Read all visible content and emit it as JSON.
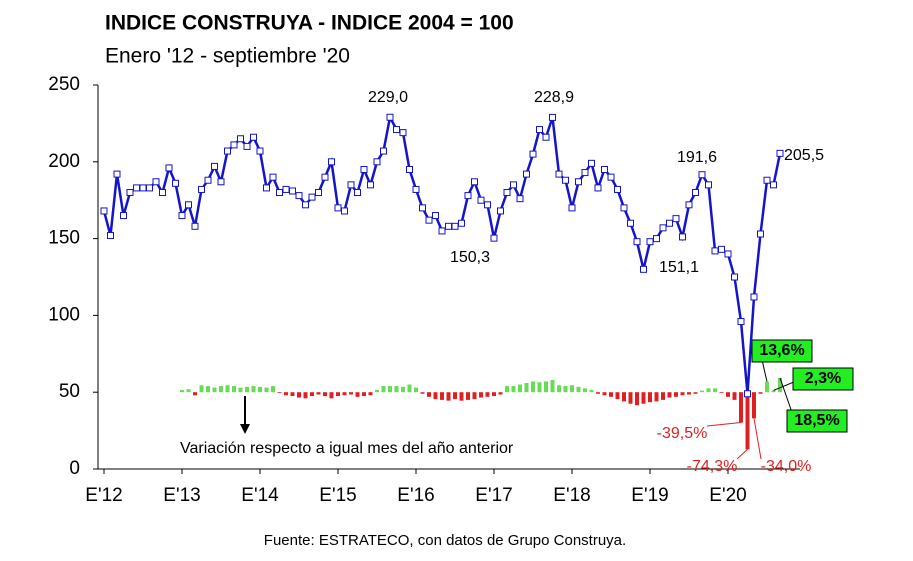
{
  "chart_data": {
    "type": "line",
    "title": "INDICE CONSTRUYA - INDICE 2004 = 100",
    "subtitle": "Enero '12 - septiembre '20",
    "source": "Fuente: ESTRATECO, con datos de Grupo Construya.",
    "annotation": "Variación respecto a igual mes del año anterior",
    "categories": [
      "E'12",
      null,
      null,
      null,
      null,
      null,
      null,
      null,
      null,
      null,
      null,
      null,
      "E'13",
      null,
      null,
      null,
      null,
      null,
      null,
      null,
      null,
      null,
      null,
      null,
      "E'14",
      null,
      null,
      null,
      null,
      null,
      null,
      null,
      null,
      null,
      null,
      null,
      "E'15",
      null,
      null,
      null,
      null,
      null,
      null,
      null,
      null,
      null,
      null,
      null,
      "E'16",
      null,
      null,
      null,
      null,
      null,
      null,
      null,
      null,
      null,
      null,
      null,
      "E'17",
      null,
      null,
      null,
      null,
      null,
      null,
      null,
      null,
      null,
      null,
      null,
      "E'18",
      null,
      null,
      null,
      null,
      null,
      null,
      null,
      null,
      null,
      null,
      null,
      "E'19",
      null,
      null,
      null,
      null,
      null,
      null,
      null,
      null,
      null,
      null,
      null,
      "E'20",
      null,
      null,
      null,
      null,
      null,
      null,
      null,
      null
    ],
    "series": [
      {
        "name": "Indice Construya",
        "type": "line",
        "color": "#1414c8",
        "values": [
          168,
          152,
          192,
          165,
          180,
          183,
          183,
          183,
          187,
          180,
          196,
          186,
          165,
          172,
          158,
          182,
          188,
          197,
          187,
          207,
          211,
          215,
          210,
          216,
          207,
          183,
          190,
          180,
          182,
          181,
          178,
          172,
          177,
          180,
          190,
          200,
          170,
          168,
          185,
          180,
          195,
          185,
          200,
          207,
          229.0,
          221,
          219,
          195,
          182,
          170,
          162,
          165,
          155,
          158,
          158,
          160,
          178,
          187,
          175,
          172,
          150.3,
          168,
          180,
          185,
          176,
          192,
          205,
          221,
          216,
          228.9,
          192,
          188,
          170,
          187,
          193,
          199,
          183,
          195,
          190,
          182,
          170,
          160,
          148,
          130,
          148,
          150,
          157,
          160,
          163,
          151.1,
          172,
          180,
          191.6,
          185,
          142,
          143,
          140,
          125,
          96,
          49,
          112,
          153,
          188,
          185,
          205.5
        ],
        "value_labels": [
          null,
          null,
          null,
          null,
          null,
          null,
          null,
          null,
          null,
          null,
          null,
          null,
          null,
          null,
          null,
          null,
          null,
          null,
          null,
          null,
          null,
          null,
          null,
          null,
          null,
          null,
          null,
          null,
          null,
          null,
          null,
          null,
          null,
          null,
          null,
          null,
          null,
          null,
          null,
          null,
          null,
          null,
          null,
          null,
          "229,0",
          null,
          null,
          null,
          null,
          null,
          null,
          null,
          null,
          null,
          null,
          null,
          null,
          null,
          null,
          null,
          "150,3",
          null,
          null,
          null,
          null,
          null,
          null,
          null,
          null,
          "228,9",
          null,
          null,
          null,
          null,
          null,
          null,
          null,
          null,
          null,
          null,
          null,
          null,
          null,
          null,
          null,
          null,
          null,
          null,
          null,
          "151,1",
          null,
          null,
          "191,6",
          null,
          null,
          null,
          null,
          null,
          null,
          null,
          null,
          null,
          null,
          null,
          "205,5"
        ]
      },
      {
        "name": "Variación interanual",
        "type": "bar",
        "axis": "y2",
        "color": "#66dd55",
        "negative_color": "#e02020",
        "values": [
          null,
          null,
          null,
          null,
          null,
          null,
          null,
          null,
          null,
          null,
          null,
          null,
          3,
          4,
          -4,
          9,
          8,
          6,
          8,
          9,
          8,
          6,
          7,
          8,
          7,
          6,
          8,
          -1,
          -4,
          -5,
          -7,
          -8,
          -5,
          -3,
          -5,
          -8,
          -5,
          -4,
          -3,
          -6,
          -5,
          -4,
          3,
          8,
          8,
          8,
          7,
          10,
          6,
          -2,
          -6,
          -9,
          -10,
          -11,
          -9,
          -11,
          -10,
          -9,
          -7,
          -6,
          -5,
          -3,
          8,
          8,
          10,
          12,
          14,
          13,
          14,
          16,
          9,
          8,
          9,
          7,
          5,
          3,
          -2,
          -4,
          -6,
          -9,
          -12,
          -15,
          -17,
          -15,
          -13,
          -12,
          -10,
          -7,
          -6,
          -4,
          -3,
          -2,
          2,
          5,
          5,
          -1,
          -6,
          -10,
          -39.5,
          -74.3,
          -34.0,
          -2,
          13.6,
          2.3,
          18.5
        ],
        "value_labels": [
          null,
          null,
          null,
          null,
          null,
          null,
          null,
          null,
          null,
          null,
          null,
          null,
          null,
          null,
          null,
          null,
          null,
          null,
          null,
          null,
          null,
          null,
          null,
          null,
          null,
          null,
          null,
          null,
          null,
          null,
          null,
          null,
          null,
          null,
          null,
          null,
          null,
          null,
          null,
          null,
          null,
          null,
          null,
          null,
          null,
          null,
          null,
          null,
          null,
          null,
          null,
          null,
          null,
          null,
          null,
          null,
          null,
          null,
          null,
          null,
          null,
          null,
          null,
          null,
          null,
          null,
          null,
          null,
          null,
          null,
          null,
          null,
          null,
          null,
          null,
          null,
          null,
          null,
          null,
          null,
          null,
          null,
          null,
          null,
          null,
          null,
          null,
          null,
          null,
          null,
          null,
          null,
          null,
          null,
          null,
          null,
          null,
          null,
          "-39,5%",
          "-74,3%",
          "-34,0%",
          null,
          "13,6%",
          "2,3%",
          "18,5%"
        ]
      }
    ],
    "ylim": [
      0,
      250
    ],
    "yticks": [
      0,
      50,
      100,
      150,
      200,
      250
    ],
    "y2lim": [
      -100,
      400
    ]
  }
}
